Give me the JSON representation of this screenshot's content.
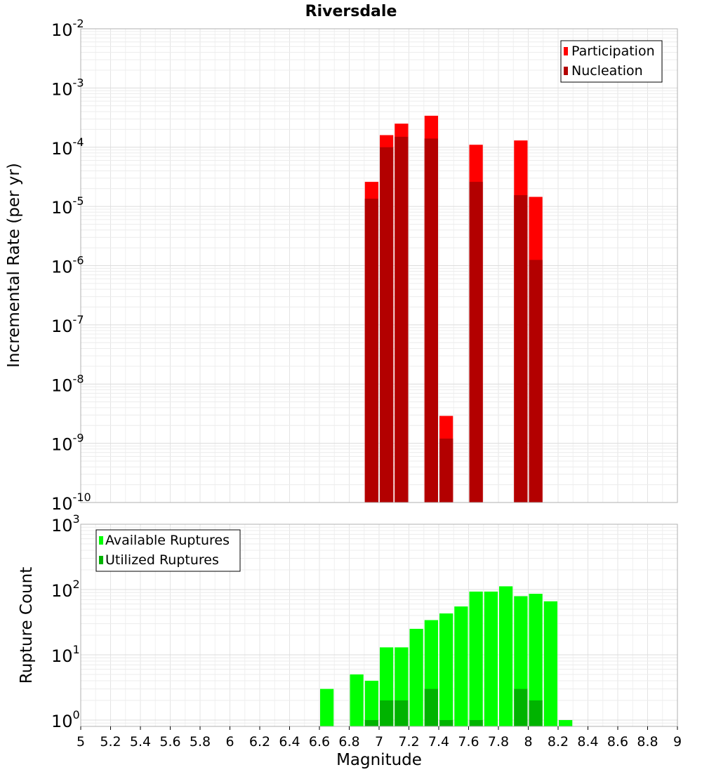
{
  "chart_data": [
    {
      "type": "bar",
      "title": "Riversdale",
      "xlabel": "",
      "ylabel": "Incremental Rate (per yr)",
      "yscale": "log",
      "ylim": [
        1e-10,
        0.01
      ],
      "xlim": [
        5,
        9
      ],
      "bar_width": 0.1,
      "grid": true,
      "legend_position": "top-right",
      "y_tick_labels": [
        {
          "base": "10",
          "exp": "-10"
        },
        {
          "base": "10",
          "exp": "-9"
        },
        {
          "base": "10",
          "exp": "-8"
        },
        {
          "base": "10",
          "exp": "-7"
        },
        {
          "base": "10",
          "exp": "-6"
        },
        {
          "base": "10",
          "exp": "-5"
        },
        {
          "base": "10",
          "exp": "-4"
        },
        {
          "base": "10",
          "exp": "-3"
        },
        {
          "base": "10",
          "exp": "-2"
        }
      ],
      "series": [
        {
          "name": "Participation",
          "color": "#ff0000",
          "x": [
            6.95,
            7.05,
            7.15,
            7.35,
            7.45,
            7.65,
            7.95,
            8.05
          ],
          "values": [
            2.6e-05,
            0.00016,
            0.00025,
            0.00034,
            2.9e-09,
            0.00011,
            0.00013,
            1.45e-05
          ]
        },
        {
          "name": "Nucleation",
          "color": "#b30000",
          "x": [
            6.95,
            7.05,
            7.15,
            7.35,
            7.45,
            7.65,
            7.95,
            8.05
          ],
          "values": [
            1.35e-05,
            0.0001,
            0.00015,
            0.00014,
            1.2e-09,
            2.6e-05,
            1.55e-05,
            1.25e-06
          ]
        }
      ]
    },
    {
      "type": "bar",
      "title": "",
      "xlabel": "Magnitude",
      "ylabel": "Rupture Count",
      "yscale": "log",
      "ylim": [
        0.8,
        1000
      ],
      "xlim": [
        5,
        9
      ],
      "bar_width": 0.1,
      "grid": true,
      "legend_position": "top-left",
      "x_ticks": [
        "5",
        "5.2",
        "5.4",
        "5.6",
        "5.8",
        "6",
        "6.2",
        "6.4",
        "6.6",
        "6.8",
        "7",
        "7.2",
        "7.4",
        "7.6",
        "7.8",
        "8",
        "8.2",
        "8.4",
        "8.6",
        "8.8",
        "9"
      ],
      "y_tick_labels": [
        {
          "base": "10",
          "exp": "0"
        },
        {
          "base": "10",
          "exp": "1"
        },
        {
          "base": "10",
          "exp": "2"
        },
        {
          "base": "10",
          "exp": "3"
        }
      ],
      "series": [
        {
          "name": "Available Ruptures",
          "color": "#00ff00",
          "x": [
            6.65,
            6.85,
            6.95,
            7.05,
            7.15,
            7.25,
            7.35,
            7.45,
            7.55,
            7.65,
            7.75,
            7.85,
            7.95,
            8.05,
            8.15,
            8.25
          ],
          "values": [
            3,
            5,
            4,
            13,
            13,
            25,
            34,
            43,
            55,
            93,
            93,
            112,
            79,
            86,
            66,
            1
          ]
        },
        {
          "name": "Utilized Ruptures",
          "color": "#00b300",
          "x": [
            6.95,
            7.05,
            7.15,
            7.35,
            7.45,
            7.65,
            7.95,
            8.05
          ],
          "values": [
            1,
            2,
            2,
            3,
            1,
            1,
            3,
            2
          ]
        }
      ]
    }
  ]
}
